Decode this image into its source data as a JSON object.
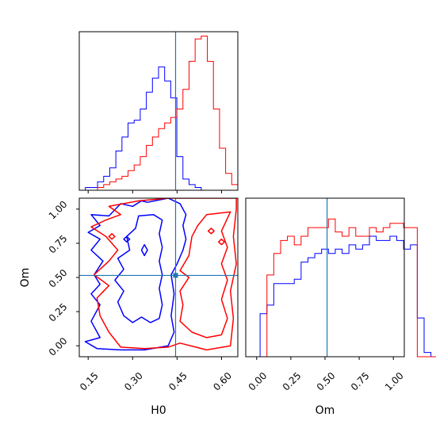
{
  "chart_data": {
    "type": "corner",
    "parameters": [
      "H0",
      "Om"
    ],
    "truth": {
      "H0": 0.445,
      "Om": 0.515
    },
    "colors": {
      "red": "#ff0000",
      "blue": "#0000ff",
      "truth": "#1f77b4"
    },
    "panels": [
      {
        "name": "hist-H0",
        "xlim": [
          0.12,
          0.655
        ],
        "series": [
          {
            "color": "#0000ff",
            "bins": [
              0.12,
              0.655
            ],
            "counts": [
              0,
              1,
              1,
              3,
              5,
              8,
              14,
              19,
              24,
              25,
              29,
              35,
              40,
              44,
              39,
              33,
              12,
              4,
              2,
              1,
              0,
              0,
              0,
              0,
              0,
              0
            ]
          },
          {
            "color": "#ff0000",
            "bins": [
              0.12,
              0.655
            ],
            "counts": [
              0,
              0,
              0,
              1,
              2,
              3,
              4,
              5,
              7,
              9,
              12,
              16,
              19,
              22,
              24,
              26,
              29,
              36,
              46,
              54,
              55,
              46,
              29,
              15,
              6,
              2
            ]
          }
        ]
      },
      {
        "name": "hist-Om",
        "xlim": [
          -0.08,
          1.08
        ],
        "series": [
          {
            "color": "#0000ff",
            "counts": [
              0,
              10,
              12,
              17,
              17,
              17,
              18,
              22,
              23,
              24,
              25,
              24,
              25,
              24,
              26,
              25,
              26,
              28,
              27,
              27,
              28,
              27,
              25,
              26,
              9,
              1,
              0
            ]
          },
          {
            "color": "#ff0000",
            "counts": [
              0,
              0,
              19,
              24,
              27,
              28,
              26,
              28,
              30,
              30,
              30,
              32,
              29,
              28,
              30,
              28,
              28,
              30,
              29,
              30,
              31,
              31,
              30,
              30,
              0,
              0,
              0
            ]
          }
        ]
      },
      {
        "name": "contour-H0-Om",
        "xlim": [
          0.12,
          0.655
        ],
        "ylim": [
          -0.08,
          1.08
        ],
        "contours": [
          {
            "color": "#0000ff",
            "level": "outer"
          },
          {
            "color": "#0000ff",
            "level": "inner"
          },
          {
            "color": "#ff0000",
            "level": "outer"
          },
          {
            "color": "#ff0000",
            "level": "inner"
          }
        ]
      }
    ],
    "xticks_H0": [
      "0.15",
      "0.30",
      "0.45",
      "0.60"
    ],
    "yticks_Om": [
      "0.00",
      "0.25",
      "0.50",
      "0.75",
      "1.00"
    ],
    "xticks_Om": [
      "0.00",
      "0.25",
      "0.50",
      "0.75",
      "1.00"
    ],
    "xlabel_left": "H0",
    "xlabel_right": "Om",
    "ylabel": "Om"
  }
}
